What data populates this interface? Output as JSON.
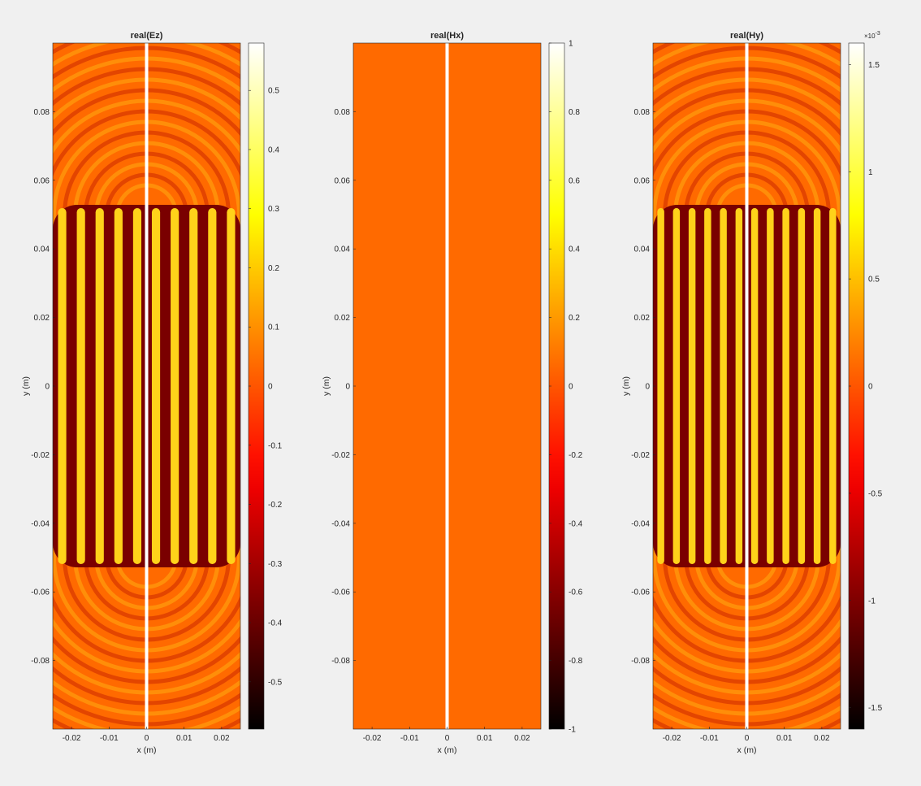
{
  "chart_data": [
    {
      "type": "heatmap",
      "title": "real(Ez)",
      "xlabel": "x (m)",
      "ylabel": "y (m)",
      "xlim": [
        -0.025,
        0.025
      ],
      "ylim": [
        -0.1,
        0.1
      ],
      "xticks": [
        "-0.02",
        "-0.01",
        "0",
        "0.01",
        "0.02"
      ],
      "yticks": [
        "0.08",
        "0.06",
        "0.04",
        "0.02",
        "0",
        "-0.02",
        "-0.04",
        "-0.06",
        "-0.08"
      ],
      "colormap": "hot",
      "clim": [
        -0.58,
        0.58
      ],
      "colorbar_ticks": [
        "0.5",
        "0.4",
        "0.3",
        "0.2",
        "0.1",
        "0",
        "-0.1",
        "-0.2",
        "-0.3",
        "-0.4",
        "-0.5"
      ],
      "colorbar_exponent": "",
      "pattern": "standing waves between plates at |y| < 0.05, circular ripples beyond",
      "uniform": false
    },
    {
      "type": "heatmap",
      "title": "real(Hx)",
      "xlabel": "x (m)",
      "ylabel": "y (m)",
      "xlim": [
        -0.025,
        0.025
      ],
      "ylim": [
        -0.1,
        0.1
      ],
      "xticks": [
        "-0.02",
        "-0.01",
        "0",
        "0.01",
        "0.02"
      ],
      "yticks": [
        "0.08",
        "0.06",
        "0.04",
        "0.02",
        "0",
        "-0.02",
        "-0.04",
        "-0.06",
        "-0.08"
      ],
      "colormap": "hot",
      "clim": [
        -1,
        1
      ],
      "colorbar_ticks": [
        "1",
        "0.8",
        "0.6",
        "0.4",
        "0.2",
        "0",
        "-0.2",
        "-0.4",
        "-0.6",
        "-0.8",
        "-1"
      ],
      "colorbar_exponent": "",
      "pattern": "uniform zero field",
      "uniform": true
    },
    {
      "type": "heatmap",
      "title": "real(Hy)",
      "xlabel": "x (m)",
      "ylabel": "y (m)",
      "xlim": [
        -0.025,
        0.025
      ],
      "ylim": [
        -0.1,
        0.1
      ],
      "xticks": [
        "-0.02",
        "-0.01",
        "0",
        "0.01",
        "0.02"
      ],
      "yticks": [
        "0.08",
        "0.06",
        "0.04",
        "0.02",
        "0",
        "-0.02",
        "-0.04",
        "-0.06",
        "-0.08"
      ],
      "colormap": "hot",
      "clim": [
        -1.6,
        1.6
      ],
      "colorbar_ticks": [
        "1.5",
        "1",
        "0.5",
        "0",
        "-0.5",
        "-1",
        "-1.5"
      ],
      "colorbar_exponent": "-3",
      "colorbar_multiplier": "×10",
      "pattern": "standing waves between plates at |y| < 0.05, circular ripples beyond",
      "uniform": false
    }
  ],
  "colors": {
    "background": "#f0f0f0",
    "zero_level": "#ff6a00",
    "divider": "#ffffff"
  }
}
